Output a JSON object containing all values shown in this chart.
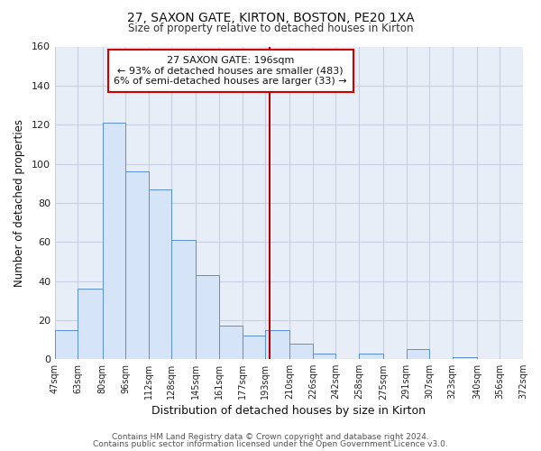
{
  "title": "27, SAXON GATE, KIRTON, BOSTON, PE20 1XA",
  "subtitle": "Size of property relative to detached houses in Kirton",
  "xlabel": "Distribution of detached houses by size in Kirton",
  "ylabel": "Number of detached properties",
  "footer_line1": "Contains HM Land Registry data © Crown copyright and database right 2024.",
  "footer_line2": "Contains public sector information licensed under the Open Government Licence v3.0.",
  "annotation_title": "27 SAXON GATE: 196sqm",
  "annotation_line1": "← 93% of detached houses are smaller (483)",
  "annotation_line2": "6% of semi-detached houses are larger (33) →",
  "bar_edges": [
    47,
    63,
    80,
    96,
    112,
    128,
    145,
    161,
    177,
    193,
    210,
    226,
    242,
    258,
    275,
    291,
    307,
    323,
    340,
    356,
    372
  ],
  "bar_heights": [
    15,
    36,
    121,
    96,
    87,
    61,
    43,
    17,
    12,
    15,
    8,
    3,
    0,
    3,
    0,
    5,
    0,
    1,
    0,
    0
  ],
  "bar_color": "#d6e4f7",
  "bar_edge_color": "#5b8dd9",
  "vline_x": 196,
  "vline_color": "#aa0000",
  "fig_bg_color": "#ffffff",
  "plot_bg_color": "#e8eef8",
  "grid_color": "#c8cfe0",
  "ylim": [
    0,
    160
  ],
  "yticks": [
    0,
    20,
    40,
    60,
    80,
    100,
    120,
    140,
    160
  ],
  "tick_labels": [
    "47sqm",
    "63sqm",
    "80sqm",
    "96sqm",
    "112sqm",
    "128sqm",
    "145sqm",
    "161sqm",
    "177sqm",
    "193sqm",
    "210sqm",
    "226sqm",
    "242sqm",
    "258sqm",
    "275sqm",
    "291sqm",
    "307sqm",
    "323sqm",
    "340sqm",
    "356sqm",
    "372sqm"
  ]
}
